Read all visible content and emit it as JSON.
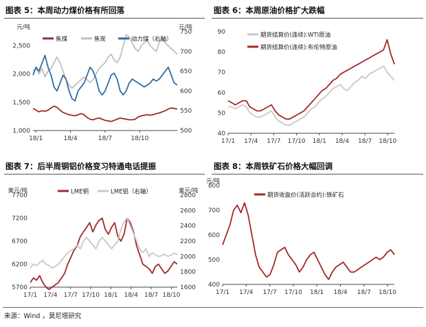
{
  "figures": [
    {
      "title": "图表 5：本周动力煤价格有所回落"
    },
    {
      "title": "图表 6：本周原油价格扩大跌幅"
    },
    {
      "title": "图表 7：后半周铜铝价格变习特通电话提振"
    },
    {
      "title": "图表 8：本周铁矿石价格大幅回调"
    }
  ],
  "source": "来源：Wind ，莫尼塔研究",
  "chart_data": [
    {
      "type": "line",
      "title": "图表 5：本周动力煤价格有所回落",
      "left_unit": "元/吨",
      "right_unit": "元/吨",
      "x_ticks": [
        "18/1",
        "18/4",
        "18/7",
        "18/10"
      ],
      "y_left_ticks": [
        "1,000",
        "1,500",
        "2,000",
        "2,500"
      ],
      "y_left_range": [
        1000,
        2750
      ],
      "y_right_ticks": [
        "500",
        "550",
        "600",
        "650",
        "700",
        "750"
      ],
      "y_right_range": [
        500,
        750
      ],
      "x_range": [
        0,
        48
      ],
      "colors": {
        "焦煤": "#a3272a",
        "焦炭": "#bfbfbf",
        "动力煤（右轴）": "#2f6da3"
      },
      "series": [
        {
          "name": "焦煤",
          "axis": "left",
          "color": "#a3272a",
          "values": [
            1390,
            1360,
            1330,
            1350,
            1340,
            1360,
            1400,
            1430,
            1410,
            1360,
            1320,
            1300,
            1280,
            1270,
            1260,
            1280,
            1300,
            1280,
            1230,
            1200,
            1190,
            1210,
            1220,
            1200,
            1180,
            1170,
            1160,
            1180,
            1200,
            1220,
            1210,
            1200,
            1190,
            1190,
            1200,
            1240,
            1260,
            1270,
            1280,
            1270,
            1280,
            1300,
            1310,
            1330,
            1350,
            1380,
            1400,
            1390,
            1380
          ]
        },
        {
          "name": "焦炭",
          "axis": "left",
          "color": "#bfbfbf",
          "values": [
            2050,
            2100,
            2000,
            2100,
            1950,
            2050,
            2100,
            2200,
            2300,
            2200,
            2050,
            1900,
            1800,
            1750,
            1800,
            1850,
            1900,
            1950,
            1900,
            1850,
            1900,
            2000,
            2100,
            2150,
            2200,
            2300,
            2350,
            2250,
            2200,
            2300,
            2500,
            2700,
            2650,
            2550,
            2450,
            2400,
            2500,
            2550,
            2600,
            2500,
            2450,
            2400,
            2550,
            2650,
            2550,
            2500,
            2450,
            2400,
            2350
          ]
        },
        {
          "name": "动力煤（右轴）",
          "axis": "right",
          "color": "#2f6da3",
          "values": [
            640,
            660,
            650,
            670,
            690,
            660,
            640,
            610,
            600,
            620,
            640,
            630,
            600,
            580,
            575,
            600,
            610,
            620,
            640,
            660,
            650,
            630,
            600,
            590,
            600,
            620,
            640,
            645,
            630,
            600,
            590,
            600,
            620,
            630,
            625,
            620,
            615,
            610,
            615,
            620,
            630,
            625,
            630,
            640,
            650,
            660,
            640,
            620,
            615
          ]
        }
      ]
    },
    {
      "type": "line",
      "title": "图表 6：本周原油价格扩大跌幅",
      "x_ticks": [
        "17/1",
        "17/4",
        "17/7",
        "17/10",
        "18/1",
        "18/4",
        "18/7",
        "18/10"
      ],
      "y_ticks": [
        "40",
        "50",
        "60",
        "70",
        "80",
        "90"
      ],
      "y_range": [
        40,
        90
      ],
      "x_range": [
        0,
        46
      ],
      "colors": {
        "期货结算价(连续):WTI原油": "#c8c8c8",
        "期货结算价(连续):布伦特原油": "#a3272a"
      },
      "series": [
        {
          "name": "期货结算价(连续):WTI原油",
          "color": "#c8c8c8",
          "values": [
            53,
            53,
            52,
            53,
            54,
            53,
            50,
            49,
            48,
            48,
            49,
            50,
            51,
            48,
            46,
            45,
            44,
            44,
            45,
            46,
            47,
            48,
            50,
            52,
            53,
            55,
            57,
            58,
            60,
            62,
            63,
            64,
            62,
            61,
            63,
            65,
            66,
            68,
            67,
            69,
            70,
            71,
            72,
            73,
            70,
            68,
            66
          ]
        },
        {
          "name": "期货结算价(连续):布伦特原油",
          "color": "#a3272a",
          "values": [
            56,
            55,
            54,
            55,
            56,
            56,
            53,
            52,
            51,
            51,
            52,
            53,
            54,
            51,
            49,
            48,
            47,
            47,
            48,
            49,
            50,
            51,
            53,
            55,
            57,
            59,
            61,
            62,
            64,
            66,
            67,
            69,
            70,
            71,
            72,
            73,
            74,
            75,
            76,
            77,
            78,
            79,
            80,
            81,
            86,
            79,
            74
          ]
        }
      ]
    },
    {
      "type": "line",
      "title": "图表 7：后半周铜铝价格变习特通电话提振",
      "left_unit": "美元/吨",
      "right_unit": "美元/吨",
      "x_ticks": [
        "17/1",
        "17/4",
        "17/7",
        "17/10",
        "18/1",
        "18/4",
        "18/7",
        "18/10"
      ],
      "y_left_ticks": [
        "5700",
        "6200",
        "6700",
        "7200",
        "7700"
      ],
      "y_left_range": [
        5700,
        7700
      ],
      "y_right_ticks": [
        "1600",
        "1800",
        "2000",
        "2200",
        "2400",
        "2600",
        "2800"
      ],
      "y_right_range": [
        1600,
        2800
      ],
      "x_range": [
        0,
        47
      ],
      "colors": {
        "LME铜": "#a3272a",
        "LME铝（右轴）": "#c8c8c8"
      },
      "series": [
        {
          "name": "LME铜",
          "axis": "left",
          "color": "#a3272a",
          "values": [
            5800,
            5900,
            5850,
            5950,
            5800,
            5700,
            5650,
            5700,
            5750,
            5800,
            5900,
            6000,
            6200,
            6350,
            6500,
            6600,
            6800,
            6900,
            7000,
            7100,
            6900,
            7050,
            7150,
            7200,
            6950,
            6850,
            7000,
            7100,
            6800,
            6700,
            6850,
            7200,
            7100,
            6900,
            6600,
            6400,
            6200,
            6150,
            6100,
            6000,
            6150,
            6200,
            6100,
            6000,
            6050,
            6150,
            6250,
            6200
          ]
        },
        {
          "name": "LME铝（右轴）",
          "axis": "right",
          "color": "#c8c8c8",
          "values": [
            1850,
            1900,
            1880,
            1920,
            1950,
            1900,
            1880,
            1850,
            1870,
            1900,
            1950,
            2000,
            2050,
            2080,
            2100,
            2150,
            2100,
            2200,
            2250,
            2200,
            2150,
            2100,
            2200,
            2250,
            2200,
            2150,
            2100,
            2150,
            2200,
            2350,
            2450,
            2500,
            2400,
            2300,
            2200,
            2100,
            2050,
            2100,
            2000,
            2050,
            2020,
            2000,
            2010,
            2030,
            2000,
            2020,
            2040,
            2030
          ]
        }
      ]
    },
    {
      "type": "line",
      "title": "图表 8：本周铁矿石价格大幅回调",
      "left_unit": "元/吨",
      "x_ticks": [
        "17/1",
        "17/4",
        "17/7",
        "17/10",
        "18/1",
        "18/4",
        "18/7",
        "18/10"
      ],
      "y_ticks": [
        "400",
        "500",
        "600",
        "700",
        "800"
      ],
      "y_range": [
        400,
        800
      ],
      "x_range": [
        0,
        47
      ],
      "colors": {
        "期货收盘价(活跃合约):铁矿石": "#a3272a"
      },
      "series": [
        {
          "name": "期货收盘价(活跃合约):铁矿石",
          "color": "#a3272a",
          "values": [
            560,
            600,
            640,
            700,
            720,
            690,
            730,
            680,
            600,
            520,
            470,
            450,
            430,
            440,
            480,
            530,
            540,
            550,
            520,
            500,
            480,
            450,
            470,
            500,
            520,
            530,
            500,
            470,
            440,
            420,
            450,
            470,
            480,
            490,
            470,
            450,
            450,
            460,
            470,
            480,
            490,
            500,
            510,
            500,
            510,
            530,
            540,
            520
          ]
        }
      ]
    }
  ]
}
